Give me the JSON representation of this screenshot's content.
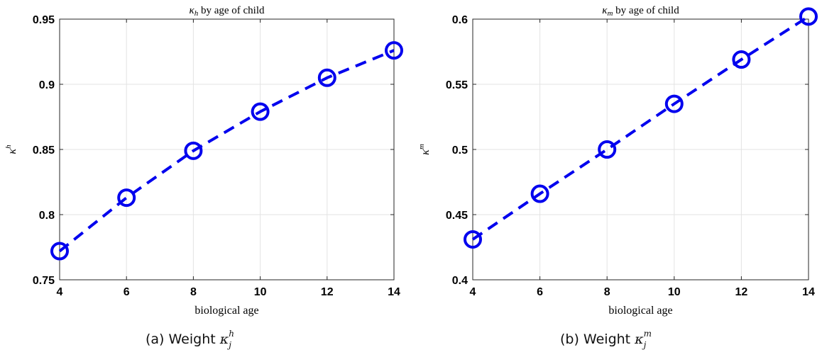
{
  "chart_data": [
    {
      "type": "line",
      "title": "κh by age of child",
      "title_main": "κ",
      "title_sub": "h",
      "title_rest": " by age of child",
      "xlabel": "biological age",
      "ylabel_main": "κ",
      "ylabel_sup": "h",
      "xlim": [
        4,
        14
      ],
      "ylim": [
        0.75,
        0.95
      ],
      "xticks": [
        "4",
        "6",
        "8",
        "10",
        "12",
        "14"
      ],
      "yticks": [
        "0.75",
        "0.8",
        "0.85",
        "0.9",
        "0.95"
      ],
      "grid": true,
      "x": [
        4,
        6,
        8,
        10,
        12,
        14
      ],
      "series": [
        {
          "values": [
            0.772,
            0.813,
            0.849,
            0.879,
            0.905,
            0.926
          ],
          "color": "#0000ee",
          "line_style": "dashed",
          "marker": "circle"
        }
      ]
    },
    {
      "type": "line",
      "title": "κm by age of child",
      "title_main": "κ",
      "title_sub": "m",
      "title_rest": " by age of child",
      "xlabel": "biological age",
      "ylabel_main": "κ",
      "ylabel_sup": "m",
      "xlim": [
        4,
        14
      ],
      "ylim": [
        0.4,
        0.6
      ],
      "xticks": [
        "4",
        "6",
        "8",
        "10",
        "12",
        "14"
      ],
      "yticks": [
        "0.4",
        "0.45",
        "0.5",
        "0.55",
        "0.6"
      ],
      "grid": true,
      "x": [
        4,
        6,
        8,
        10,
        12,
        14
      ],
      "series": [
        {
          "values": [
            0.431,
            0.466,
            0.5,
            0.535,
            0.569,
            0.602
          ],
          "color": "#0000ee",
          "line_style": "dashed",
          "marker": "circle"
        }
      ]
    }
  ],
  "captions": [
    {
      "prefix": "(a)  Weight ",
      "math": "κ",
      "sub": "j",
      "sup": "h"
    },
    {
      "prefix": "(b)  Weight ",
      "math": "κ",
      "sub": "j",
      "sup": "m"
    }
  ]
}
